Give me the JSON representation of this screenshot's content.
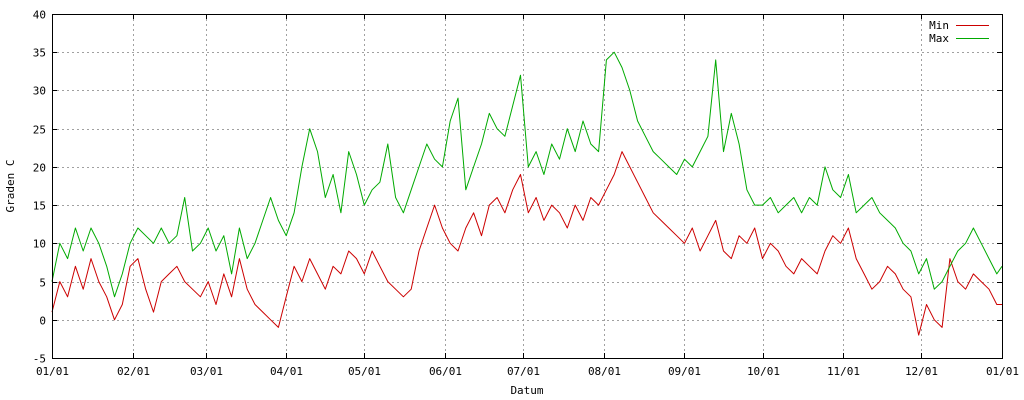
{
  "chart_data": {
    "type": "line",
    "title": "",
    "xlabel": "Datum",
    "ylabel": "Graden C",
    "xlim": [
      0,
      365
    ],
    "ylim": [
      -5,
      40
    ],
    "y_ticks": [
      -5,
      0,
      5,
      10,
      15,
      20,
      25,
      30,
      35,
      40
    ],
    "x_ticks": [
      {
        "day": 0,
        "label": "01/01"
      },
      {
        "day": 31,
        "label": "02/01"
      },
      {
        "day": 59,
        "label": "03/01"
      },
      {
        "day": 90,
        "label": "04/01"
      },
      {
        "day": 120,
        "label": "05/01"
      },
      {
        "day": 151,
        "label": "06/01"
      },
      {
        "day": 181,
        "label": "07/01"
      },
      {
        "day": 212,
        "label": "08/01"
      },
      {
        "day": 243,
        "label": "09/01"
      },
      {
        "day": 273,
        "label": "10/01"
      },
      {
        "day": 304,
        "label": "11/01"
      },
      {
        "day": 334,
        "label": "12/01"
      },
      {
        "day": 365,
        "label": "01/01"
      }
    ],
    "grid": true,
    "legend_position": "top-right",
    "series": [
      {
        "name": "Min",
        "color": "#cc0000",
        "points": [
          [
            0,
            1
          ],
          [
            3,
            5
          ],
          [
            6,
            3
          ],
          [
            9,
            7
          ],
          [
            12,
            4
          ],
          [
            15,
            8
          ],
          [
            18,
            5
          ],
          [
            21,
            3
          ],
          [
            24,
            0
          ],
          [
            27,
            2
          ],
          [
            30,
            7
          ],
          [
            33,
            8
          ],
          [
            36,
            4
          ],
          [
            39,
            1
          ],
          [
            42,
            5
          ],
          [
            45,
            6
          ],
          [
            48,
            7
          ],
          [
            51,
            5
          ],
          [
            54,
            4
          ],
          [
            57,
            3
          ],
          [
            60,
            5
          ],
          [
            63,
            2
          ],
          [
            66,
            6
          ],
          [
            69,
            3
          ],
          [
            72,
            8
          ],
          [
            75,
            4
          ],
          [
            78,
            2
          ],
          [
            81,
            1
          ],
          [
            84,
            0
          ],
          [
            87,
            -1
          ],
          [
            90,
            3
          ],
          [
            93,
            7
          ],
          [
            96,
            5
          ],
          [
            99,
            8
          ],
          [
            102,
            6
          ],
          [
            105,
            4
          ],
          [
            108,
            7
          ],
          [
            111,
            6
          ],
          [
            114,
            9
          ],
          [
            117,
            8
          ],
          [
            120,
            6
          ],
          [
            123,
            9
          ],
          [
            126,
            7
          ],
          [
            129,
            5
          ],
          [
            132,
            4
          ],
          [
            135,
            3
          ],
          [
            138,
            4
          ],
          [
            141,
            9
          ],
          [
            144,
            12
          ],
          [
            147,
            15
          ],
          [
            150,
            12
          ],
          [
            153,
            10
          ],
          [
            156,
            9
          ],
          [
            159,
            12
          ],
          [
            162,
            14
          ],
          [
            165,
            11
          ],
          [
            168,
            15
          ],
          [
            171,
            16
          ],
          [
            174,
            14
          ],
          [
            177,
            17
          ],
          [
            180,
            19
          ],
          [
            183,
            14
          ],
          [
            186,
            16
          ],
          [
            189,
            13
          ],
          [
            192,
            15
          ],
          [
            195,
            14
          ],
          [
            198,
            12
          ],
          [
            201,
            15
          ],
          [
            204,
            13
          ],
          [
            207,
            16
          ],
          [
            210,
            15
          ],
          [
            213,
            17
          ],
          [
            216,
            19
          ],
          [
            219,
            22
          ],
          [
            222,
            20
          ],
          [
            225,
            18
          ],
          [
            228,
            16
          ],
          [
            231,
            14
          ],
          [
            234,
            13
          ],
          [
            237,
            12
          ],
          [
            240,
            11
          ],
          [
            243,
            10
          ],
          [
            246,
            12
          ],
          [
            249,
            9
          ],
          [
            252,
            11
          ],
          [
            255,
            13
          ],
          [
            258,
            9
          ],
          [
            261,
            8
          ],
          [
            264,
            11
          ],
          [
            267,
            10
          ],
          [
            270,
            12
          ],
          [
            273,
            8
          ],
          [
            276,
            10
          ],
          [
            279,
            9
          ],
          [
            282,
            7
          ],
          [
            285,
            6
          ],
          [
            288,
            8
          ],
          [
            291,
            7
          ],
          [
            294,
            6
          ],
          [
            297,
            9
          ],
          [
            300,
            11
          ],
          [
            303,
            10
          ],
          [
            306,
            12
          ],
          [
            309,
            8
          ],
          [
            312,
            6
          ],
          [
            315,
            4
          ],
          [
            318,
            5
          ],
          [
            321,
            7
          ],
          [
            324,
            6
          ],
          [
            327,
            4
          ],
          [
            330,
            3
          ],
          [
            333,
            -2
          ],
          [
            336,
            2
          ],
          [
            339,
            0
          ],
          [
            342,
            -1
          ],
          [
            345,
            8
          ],
          [
            348,
            5
          ],
          [
            351,
            4
          ],
          [
            354,
            6
          ],
          [
            357,
            5
          ],
          [
            360,
            4
          ],
          [
            363,
            2
          ],
          [
            365,
            2
          ]
        ]
      },
      {
        "name": "Max",
        "color": "#00aa00",
        "points": [
          [
            0,
            5
          ],
          [
            3,
            10
          ],
          [
            6,
            8
          ],
          [
            9,
            12
          ],
          [
            12,
            9
          ],
          [
            15,
            12
          ],
          [
            18,
            10
          ],
          [
            21,
            7
          ],
          [
            24,
            3
          ],
          [
            27,
            6
          ],
          [
            30,
            10
          ],
          [
            33,
            12
          ],
          [
            36,
            11
          ],
          [
            39,
            10
          ],
          [
            42,
            12
          ],
          [
            45,
            10
          ],
          [
            48,
            11
          ],
          [
            51,
            16
          ],
          [
            54,
            9
          ],
          [
            57,
            10
          ],
          [
            60,
            12
          ],
          [
            63,
            9
          ],
          [
            66,
            11
          ],
          [
            69,
            6
          ],
          [
            72,
            12
          ],
          [
            75,
            8
          ],
          [
            78,
            10
          ],
          [
            81,
            13
          ],
          [
            84,
            16
          ],
          [
            87,
            13
          ],
          [
            90,
            11
          ],
          [
            93,
            14
          ],
          [
            96,
            20
          ],
          [
            99,
            25
          ],
          [
            102,
            22
          ],
          [
            105,
            16
          ],
          [
            108,
            19
          ],
          [
            111,
            14
          ],
          [
            114,
            22
          ],
          [
            117,
            19
          ],
          [
            120,
            15
          ],
          [
            123,
            17
          ],
          [
            126,
            18
          ],
          [
            129,
            23
          ],
          [
            132,
            16
          ],
          [
            135,
            14
          ],
          [
            138,
            17
          ],
          [
            141,
            20
          ],
          [
            144,
            23
          ],
          [
            147,
            21
          ],
          [
            150,
            20
          ],
          [
            153,
            26
          ],
          [
            156,
            29
          ],
          [
            159,
            17
          ],
          [
            162,
            20
          ],
          [
            165,
            23
          ],
          [
            168,
            27
          ],
          [
            171,
            25
          ],
          [
            174,
            24
          ],
          [
            177,
            28
          ],
          [
            180,
            32
          ],
          [
            183,
            20
          ],
          [
            186,
            22
          ],
          [
            189,
            19
          ],
          [
            192,
            23
          ],
          [
            195,
            21
          ],
          [
            198,
            25
          ],
          [
            201,
            22
          ],
          [
            204,
            26
          ],
          [
            207,
            23
          ],
          [
            210,
            22
          ],
          [
            213,
            34
          ],
          [
            216,
            35
          ],
          [
            219,
            33
          ],
          [
            222,
            30
          ],
          [
            225,
            26
          ],
          [
            228,
            24
          ],
          [
            231,
            22
          ],
          [
            234,
            21
          ],
          [
            237,
            20
          ],
          [
            240,
            19
          ],
          [
            243,
            21
          ],
          [
            246,
            20
          ],
          [
            249,
            22
          ],
          [
            252,
            24
          ],
          [
            255,
            34
          ],
          [
            258,
            22
          ],
          [
            261,
            27
          ],
          [
            264,
            23
          ],
          [
            267,
            17
          ],
          [
            270,
            15
          ],
          [
            273,
            15
          ],
          [
            276,
            16
          ],
          [
            279,
            14
          ],
          [
            282,
            15
          ],
          [
            285,
            16
          ],
          [
            288,
            14
          ],
          [
            291,
            16
          ],
          [
            294,
            15
          ],
          [
            297,
            20
          ],
          [
            300,
            17
          ],
          [
            303,
            16
          ],
          [
            306,
            19
          ],
          [
            309,
            14
          ],
          [
            312,
            15
          ],
          [
            315,
            16
          ],
          [
            318,
            14
          ],
          [
            321,
            13
          ],
          [
            324,
            12
          ],
          [
            327,
            10
          ],
          [
            330,
            9
          ],
          [
            333,
            6
          ],
          [
            336,
            8
          ],
          [
            339,
            4
          ],
          [
            342,
            5
          ],
          [
            345,
            7
          ],
          [
            348,
            9
          ],
          [
            351,
            10
          ],
          [
            354,
            12
          ],
          [
            357,
            10
          ],
          [
            360,
            8
          ],
          [
            363,
            6
          ],
          [
            365,
            7
          ]
        ]
      }
    ]
  }
}
